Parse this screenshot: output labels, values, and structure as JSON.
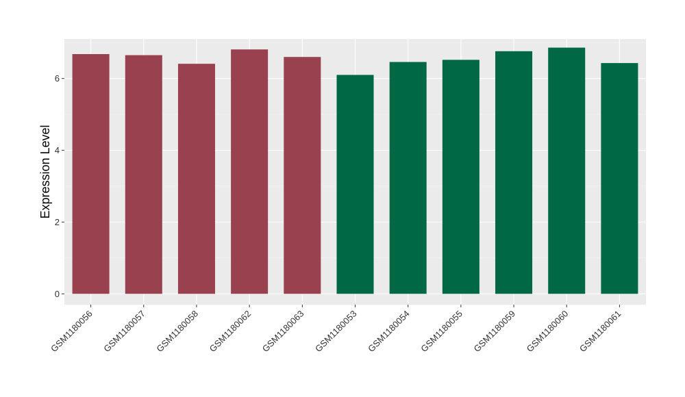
{
  "chart_data": {
    "type": "bar",
    "title": "",
    "xlabel": "",
    "ylabel": "Expression Level",
    "ylim": [
      -0.3,
      7.1
    ],
    "yticks": [
      0,
      2,
      4,
      6
    ],
    "grid": true,
    "background": "#ebebeb",
    "categories": [
      "GSM1180056",
      "GSM1180057",
      "GSM1180058",
      "GSM1180062",
      "GSM1180063",
      "GSM1180053",
      "GSM1180054",
      "GSM1180055",
      "GSM1180059",
      "GSM1180060",
      "GSM1180061"
    ],
    "values": [
      6.68,
      6.65,
      6.41,
      6.81,
      6.6,
      6.1,
      6.46,
      6.52,
      6.76,
      6.86,
      6.43
    ],
    "bar_colors": [
      "#99414f",
      "#99414f",
      "#99414f",
      "#99414f",
      "#99414f",
      "#006845",
      "#006845",
      "#006845",
      "#006845",
      "#006845",
      "#006845"
    ]
  }
}
